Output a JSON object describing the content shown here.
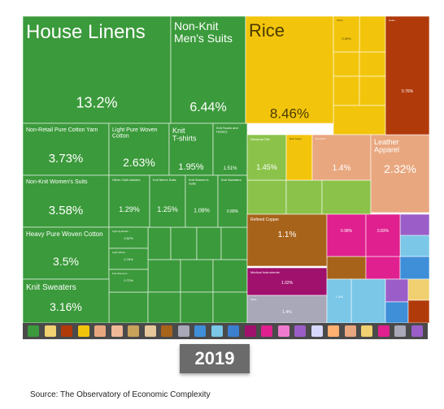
{
  "chart_data": {
    "type": "treemap",
    "year": "2019",
    "source": "Source: The Observatory of Economic Complexity",
    "colors": {
      "textiles": "#3b9a3b",
      "vegetable": "#f2c50c",
      "foodstuffs": "#b13a0a",
      "minerals": "#8bc34a",
      "mineral_brown": "#a8631a",
      "hides": "#e9a77f",
      "hides_light": "#f0b896",
      "chemicals": "#e0208f",
      "instruments": "#a0106d",
      "metals": "#a8a8b8",
      "machines": "#3f8fd8",
      "electric": "#7ac7e8",
      "misc": "#9b5ec8",
      "weapons": "#f0d070"
    },
    "items": [
      {
        "id": "house-linens",
        "label": "House Linens",
        "value": "13.2%",
        "group": "textiles"
      },
      {
        "id": "non-knit-mens-suits",
        "label": "Non-Knit Men's Suits",
        "value": "6.44%",
        "group": "textiles"
      },
      {
        "id": "rice",
        "label": "Rice",
        "value": "8.46%",
        "group": "vegetable"
      },
      {
        "id": "non-retail-pure-cotton-yarn",
        "label": "Non-Retail Pure Cotton Yarn",
        "value": "3.73%",
        "group": "textiles"
      },
      {
        "id": "light-pure-woven-cotton",
        "label": "Light Pure Woven Cotton",
        "value": "2.63%",
        "group": "textiles"
      },
      {
        "id": "knit-t-shirts",
        "label": "Knit T-shirts",
        "value": "1.95%",
        "group": "textiles"
      },
      {
        "id": "knit-socks",
        "label": "Knit Socks and Hosiery",
        "value": "1.51%",
        "group": "textiles"
      },
      {
        "id": "non-knit-womens-suits",
        "label": "Non-Knit Women's Suits",
        "value": "3.58%",
        "group": "textiles"
      },
      {
        "id": "other-cloth-articles",
        "label": "Other Cloth Articles",
        "value": "1.29%",
        "group": "textiles"
      },
      {
        "id": "knit-mens-suits",
        "label": "Knit Men's Suits",
        "value": "1.25%",
        "group": "textiles"
      },
      {
        "id": "knit-womens-suits",
        "label": "Knit Women's Suits",
        "value": "1.08%",
        "group": "textiles"
      },
      {
        "id": "knit-sweaters-small",
        "label": "Knit Sweaters",
        "value": "0.89%",
        "group": "textiles"
      },
      {
        "id": "heavy-pure-woven-cotton",
        "label": "Heavy Pure Woven Cotton",
        "value": "3.5%",
        "group": "textiles"
      },
      {
        "id": "light-synthetic",
        "label": "Light Synthetic...",
        "value": "0.82%",
        "group": "textiles"
      },
      {
        "id": "light-mixed",
        "label": "Light Mixed...",
        "value": "0.76%",
        "group": "textiles"
      },
      {
        "id": "knit-womens",
        "label": "Knit Women's...",
        "value": "0.72%",
        "group": "textiles"
      },
      {
        "id": "knit-sweaters",
        "label": "Knit Sweaters",
        "value": "3.16%",
        "group": "textiles"
      },
      {
        "id": "residual-oils",
        "label": "Residual Oils",
        "value": "1.45%",
        "group": "minerals"
      },
      {
        "id": "raw-sugar",
        "label": "Raw Sugar",
        "value": "",
        "group": "vegetable"
      },
      {
        "id": "non-knit-leather",
        "label": "Non-Knit...",
        "value": "1.4%",
        "group": "hides"
      },
      {
        "id": "leather-apparel",
        "label": "Leather Apparel",
        "value": "2.32%",
        "group": "hides"
      },
      {
        "id": "refined-copper",
        "label": "Refined Copper",
        "value": "1.1%",
        "group": "mineral_brown"
      },
      {
        "id": "medical-instruments",
        "label": "Medical Instruments",
        "value": "1.02%",
        "group": "instruments"
      },
      {
        "id": "chem-a",
        "label": "",
        "value": "0.98%",
        "group": "chemicals"
      },
      {
        "id": "chem-b",
        "label": "",
        "value": "0.83%",
        "group": "chemicals"
      },
      {
        "id": "foodstuff-red",
        "label": "Grain...",
        "value": "0.76%",
        "group": "foodstuffs"
      },
      {
        "id": "metal-scrap",
        "label": "Metal...",
        "value": "1.4%",
        "group": "metals"
      },
      {
        "id": "veg-small-a",
        "label": "Other...",
        "value": "0.39%",
        "group": "vegetable"
      },
      {
        "id": "elec-a",
        "label": "",
        "value": "1.3%",
        "group": "electric"
      }
    ],
    "legend_icons": [
      "textiles",
      "weapons",
      "foodstuffs",
      "vegetable",
      "hides",
      "hides_light",
      "wood",
      "stone",
      "mineral_brown",
      "metals",
      "machines",
      "electric",
      "transport",
      "instruments",
      "chemicals",
      "plastics",
      "misc",
      "jewelry",
      "paper",
      "hides",
      "weapons",
      "chemicals",
      "metals",
      "misc"
    ]
  }
}
